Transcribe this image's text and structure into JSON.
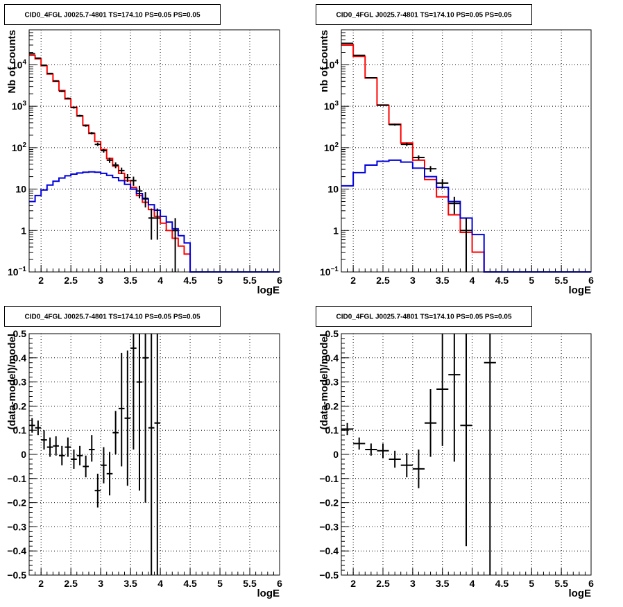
{
  "chart_data": [
    {
      "type": "line",
      "title": "CID0_4FGL J0025.7-4801 TS=174.10 PS=0.05 PS=0.05",
      "xlabel": "logE",
      "ylabel": "Nb of counts",
      "log_y": true,
      "xlim": [
        1.8,
        6.0
      ],
      "ylim": [
        0.1,
        70000
      ],
      "grid": true,
      "x_ticks": [
        "2",
        "2.5",
        "3",
        "3.5",
        "4",
        "4.5",
        "5",
        "5.5",
        "6"
      ],
      "y_ticks": [
        {
          "value": 0.1,
          "label": "10",
          "exp": "−1"
        },
        {
          "value": 1,
          "label": "1",
          "exp": ""
        },
        {
          "value": 10,
          "label": "10",
          "exp": ""
        },
        {
          "value": 100,
          "label": "10",
          "exp": "2"
        },
        {
          "value": 1000,
          "label": "10",
          "exp": "3"
        },
        {
          "value": 10000,
          "label": "10",
          "exp": "4"
        }
      ],
      "bin_edges": [
        1.8,
        1.9,
        2.0,
        2.1,
        2.2,
        2.3,
        2.4,
        2.5,
        2.6,
        2.7,
        2.8,
        2.9,
        3.0,
        3.1,
        3.2,
        3.3,
        3.4,
        3.5,
        3.6,
        3.7,
        3.8,
        3.9,
        4.0,
        4.1,
        4.2,
        4.3,
        4.4,
        4.5,
        4.6,
        4.7,
        4.8,
        4.9,
        5.0,
        5.1,
        5.2,
        5.3,
        5.4,
        5.5,
        5.6,
        5.7,
        5.8,
        5.9,
        6.0
      ],
      "series": [
        {
          "color": "#ff0000",
          "values": [
            17000,
            14000,
            9500,
            6000,
            4000,
            2400,
            1500,
            950,
            580,
            350,
            220,
            140,
            90,
            55,
            36,
            24,
            16,
            11,
            7,
            4.8,
            3.2,
            2.2,
            1.5,
            1.0,
            0.65,
            0.42,
            0.27,
            0.1,
            0.1,
            0.1,
            0.1,
            0.1,
            0.1,
            0.1,
            0.1,
            0.1,
            0.1,
            0.1,
            0.1,
            0.1,
            0.1,
            0.1
          ]
        },
        {
          "color": "#0000dd",
          "values": [
            5,
            7,
            9.5,
            12.5,
            15.5,
            18.5,
            21,
            23,
            24.5,
            25.5,
            26,
            25.5,
            24,
            21.5,
            19,
            16,
            13,
            10,
            7.8,
            5.8,
            4.2,
            3.1,
            2.2,
            1.6,
            1.1,
            0.75,
            0.5,
            0.1,
            0.1,
            0.1,
            0.1,
            0.1,
            0.1,
            0.1,
            0.1,
            0.1,
            0.1,
            0.1,
            0.1,
            0.1,
            0.1,
            0.1
          ]
        }
      ],
      "points": [
        {
          "x": 1.85,
          "y": 18500,
          "ylo": 18000,
          "yhi": 19000
        },
        {
          "x": 1.95,
          "y": 14500,
          "ylo": 14000,
          "yhi": 15000
        },
        {
          "x": 2.05,
          "y": 9800,
          "ylo": 9500,
          "yhi": 10100
        },
        {
          "x": 2.15,
          "y": 6200,
          "ylo": 6000,
          "yhi": 6400
        },
        {
          "x": 2.25,
          "y": 4100,
          "ylo": 3950,
          "yhi": 4250
        },
        {
          "x": 2.35,
          "y": 2300,
          "ylo": 2200,
          "yhi": 2400
        },
        {
          "x": 2.45,
          "y": 1550,
          "ylo": 1480,
          "yhi": 1620
        },
        {
          "x": 2.55,
          "y": 930,
          "ylo": 880,
          "yhi": 980
        },
        {
          "x": 2.65,
          "y": 590,
          "ylo": 560,
          "yhi": 620
        },
        {
          "x": 2.75,
          "y": 340,
          "ylo": 320,
          "yhi": 360
        },
        {
          "x": 2.85,
          "y": 225,
          "ylo": 210,
          "yhi": 240
        },
        {
          "x": 2.95,
          "y": 120,
          "ylo": 110,
          "yhi": 132
        },
        {
          "x": 3.05,
          "y": 85,
          "ylo": 76,
          "yhi": 94
        },
        {
          "x": 3.15,
          "y": 50,
          "ylo": 43,
          "yhi": 57
        },
        {
          "x": 3.25,
          "y": 38,
          "ylo": 32,
          "yhi": 44
        },
        {
          "x": 3.35,
          "y": 28,
          "ylo": 23,
          "yhi": 33
        },
        {
          "x": 3.45,
          "y": 19,
          "ylo": 15,
          "yhi": 23
        },
        {
          "x": 3.55,
          "y": 16,
          "ylo": 12,
          "yhi": 20
        },
        {
          "x": 3.65,
          "y": 9,
          "ylo": 6,
          "yhi": 12
        },
        {
          "x": 3.75,
          "y": 6,
          "ylo": 3.6,
          "yhi": 8.4
        },
        {
          "x": 3.85,
          "y": 2,
          "ylo": 0.6,
          "yhi": 3.4
        },
        {
          "x": 3.95,
          "y": 2,
          "ylo": 0.6,
          "yhi": 3.4
        },
        {
          "x": 4.25,
          "y": 1,
          "ylo": 0.1,
          "yhi": 2
        }
      ]
    },
    {
      "type": "line",
      "title": "CID0_4FGL J0025.7-4801 TS=174.10 PS=0.05 PS=0.05",
      "xlabel": "logE",
      "ylabel": "nb of counts",
      "log_y": true,
      "xlim": [
        1.8,
        6.0
      ],
      "ylim": [
        0.1,
        70000
      ],
      "grid": true,
      "x_ticks": [
        "2",
        "2.5",
        "3",
        "3.5",
        "4",
        "4.5",
        "5",
        "5.5",
        "6"
      ],
      "y_ticks": [
        {
          "value": 0.1,
          "label": "10",
          "exp": "−1"
        },
        {
          "value": 1,
          "label": "1",
          "exp": ""
        },
        {
          "value": 10,
          "label": "10",
          "exp": ""
        },
        {
          "value": 100,
          "label": "10",
          "exp": "2"
        },
        {
          "value": 1000,
          "label": "10",
          "exp": "3"
        },
        {
          "value": 10000,
          "label": "10",
          "exp": "4"
        }
      ],
      "bin_edges": [
        1.8,
        2.0,
        2.2,
        2.4,
        2.6,
        2.8,
        3.0,
        3.2,
        3.4,
        3.6,
        3.8,
        4.0,
        4.2,
        4.4,
        4.6,
        4.8,
        5.0,
        5.2,
        5.4,
        5.6,
        5.8,
        6.0
      ],
      "series": [
        {
          "color": "#ff0000",
          "values": [
            30000,
            16000,
            4800,
            1050,
            370,
            130,
            50,
            17,
            6.5,
            2.4,
            0.9,
            0.3,
            0.1,
            0.1,
            0.1,
            0.1,
            0.1,
            0.1,
            0.1,
            0.1,
            0.1
          ]
        },
        {
          "color": "#0000dd",
          "values": [
            12,
            25,
            38,
            47,
            50,
            45,
            32,
            20,
            11,
            5,
            2,
            0.8,
            0.1,
            0.1,
            0.1,
            0.1,
            0.1,
            0.1,
            0.1,
            0.1,
            0.1
          ]
        }
      ],
      "points": [
        {
          "x": 1.9,
          "y": 33000,
          "ylo": 32000,
          "yhi": 34000
        },
        {
          "x": 2.1,
          "y": 17000,
          "ylo": 16500,
          "yhi": 17500
        },
        {
          "x": 2.3,
          "y": 4900,
          "ylo": 4800,
          "yhi": 5000
        },
        {
          "x": 2.5,
          "y": 1070,
          "ylo": 1040,
          "yhi": 1100
        },
        {
          "x": 2.7,
          "y": 360,
          "ylo": 340,
          "yhi": 380
        },
        {
          "x": 2.9,
          "y": 120,
          "ylo": 110,
          "yhi": 132
        },
        {
          "x": 3.1,
          "y": 58,
          "ylo": 51,
          "yhi": 65
        },
        {
          "x": 3.3,
          "y": 31,
          "ylo": 26,
          "yhi": 36
        },
        {
          "x": 3.5,
          "y": 14,
          "ylo": 10.5,
          "yhi": 17.5
        },
        {
          "x": 3.7,
          "y": 4.5,
          "ylo": 2.5,
          "yhi": 6.5
        },
        {
          "x": 3.9,
          "y": 1,
          "ylo": 0.1,
          "yhi": 2
        }
      ]
    },
    {
      "type": "scatter",
      "title": "CID0_4FGL J0025.7-4801 TS=174.10 PS=0.05 PS=0.05",
      "xlabel": "logE",
      "ylabel": "(data-model)/model",
      "log_y": false,
      "xlim": [
        1.8,
        6.0
      ],
      "ylim": [
        -0.5,
        0.5
      ],
      "grid": true,
      "x_ticks": [
        "2",
        "2.5",
        "3",
        "3.5",
        "4",
        "4.5",
        "5",
        "5.5",
        "6"
      ],
      "y_ticks": [
        {
          "value": -0.5,
          "label": "−0.5"
        },
        {
          "value": -0.4,
          "label": "−0.4"
        },
        {
          "value": -0.3,
          "label": "−0.3"
        },
        {
          "value": -0.2,
          "label": "−0.2"
        },
        {
          "value": -0.1,
          "label": "−0.1"
        },
        {
          "value": 0,
          "label": "0"
        },
        {
          "value": 0.1,
          "label": "0.1"
        },
        {
          "value": 0.2,
          "label": "0.2"
        },
        {
          "value": 0.3,
          "label": "0.3"
        },
        {
          "value": 0.4,
          "label": "0.4"
        },
        {
          "value": 0.5,
          "label": "0.5"
        }
      ],
      "bin_half_width": 0.05,
      "points": [
        {
          "x": 1.85,
          "y": 0.12,
          "ylo": 0.09,
          "yhi": 0.15
        },
        {
          "x": 1.95,
          "y": 0.11,
          "ylo": 0.08,
          "yhi": 0.14
        },
        {
          "x": 2.05,
          "y": 0.06,
          "ylo": 0.02,
          "yhi": 0.1
        },
        {
          "x": 2.15,
          "y": 0.03,
          "ylo": -0.01,
          "yhi": 0.07
        },
        {
          "x": 2.25,
          "y": 0.035,
          "ylo": -0.005,
          "yhi": 0.075
        },
        {
          "x": 2.35,
          "y": -0.005,
          "ylo": -0.045,
          "yhi": 0.035
        },
        {
          "x": 2.45,
          "y": 0.03,
          "ylo": -0.01,
          "yhi": 0.07
        },
        {
          "x": 2.55,
          "y": -0.02,
          "ylo": -0.06,
          "yhi": 0.02
        },
        {
          "x": 2.65,
          "y": -0.005,
          "ylo": -0.045,
          "yhi": 0.035
        },
        {
          "x": 2.75,
          "y": -0.05,
          "ylo": -0.095,
          "yhi": -0.005
        },
        {
          "x": 2.85,
          "y": 0.02,
          "ylo": -0.03,
          "yhi": 0.08
        },
        {
          "x": 2.95,
          "y": -0.15,
          "ylo": -0.22,
          "yhi": -0.08
        },
        {
          "x": 3.05,
          "y": -0.045,
          "ylo": -0.12,
          "yhi": 0.03
        },
        {
          "x": 3.15,
          "y": -0.08,
          "ylo": -0.17,
          "yhi": 0.01
        },
        {
          "x": 3.25,
          "y": 0.09,
          "ylo": 0.0,
          "yhi": 0.18
        },
        {
          "x": 3.35,
          "y": 0.19,
          "ylo": -0.05,
          "yhi": 0.42
        },
        {
          "x": 3.45,
          "y": 0.15,
          "ylo": -0.13,
          "yhi": 0.43
        },
        {
          "x": 3.55,
          "y": 0.44,
          "ylo": 0.02,
          "yhi": 0.55
        },
        {
          "x": 3.65,
          "y": 0.3,
          "ylo": -0.15,
          "yhi": 0.55
        },
        {
          "x": 3.75,
          "y": 0.4,
          "ylo": -0.2,
          "yhi": 0.55
        },
        {
          "x": 3.85,
          "y": 0.11,
          "ylo": -0.55,
          "yhi": 0.55
        },
        {
          "x": 3.95,
          "y": 0.13,
          "ylo": -0.55,
          "yhi": 0.55
        }
      ]
    },
    {
      "type": "scatter",
      "title": "CID0_4FGL J0025.7-4801 TS=174.10 PS=0.05 PS=0.05",
      "xlabel": "logE",
      "ylabel": "(data-model)/model",
      "log_y": false,
      "xlim": [
        1.8,
        6.0
      ],
      "ylim": [
        -0.5,
        0.5
      ],
      "grid": true,
      "x_ticks": [
        "2",
        "2.5",
        "3",
        "3.5",
        "4",
        "4.5",
        "5",
        "5.5",
        "6"
      ],
      "y_ticks": [
        {
          "value": -0.5,
          "label": "−0.5"
        },
        {
          "value": -0.4,
          "label": "−0.4"
        },
        {
          "value": -0.3,
          "label": "−0.3"
        },
        {
          "value": -0.2,
          "label": "−0.2"
        },
        {
          "value": -0.1,
          "label": "−0.1"
        },
        {
          "value": 0,
          "label": "0"
        },
        {
          "value": 0.1,
          "label": "0.1"
        },
        {
          "value": 0.2,
          "label": "0.2"
        },
        {
          "value": 0.3,
          "label": "0.3"
        },
        {
          "value": 0.4,
          "label": "0.4"
        },
        {
          "value": 0.5,
          "label": "0.5"
        }
      ],
      "bin_half_width": 0.1,
      "points": [
        {
          "x": 1.9,
          "y": 0.105,
          "ylo": 0.08,
          "yhi": 0.13
        },
        {
          "x": 2.1,
          "y": 0.045,
          "ylo": 0.02,
          "yhi": 0.07
        },
        {
          "x": 2.3,
          "y": 0.02,
          "ylo": -0.005,
          "yhi": 0.045
        },
        {
          "x": 2.5,
          "y": 0.015,
          "ylo": -0.015,
          "yhi": 0.045
        },
        {
          "x": 2.7,
          "y": -0.02,
          "ylo": -0.055,
          "yhi": 0.015
        },
        {
          "x": 2.9,
          "y": -0.045,
          "ylo": -0.095,
          "yhi": 0.005
        },
        {
          "x": 3.1,
          "y": -0.06,
          "ylo": -0.14,
          "yhi": 0.02
        },
        {
          "x": 3.3,
          "y": 0.13,
          "ylo": -0.01,
          "yhi": 0.27
        },
        {
          "x": 3.5,
          "y": 0.27,
          "ylo": 0.035,
          "yhi": 0.5
        },
        {
          "x": 3.7,
          "y": 0.33,
          "ylo": -0.03,
          "yhi": 0.55
        },
        {
          "x": 3.9,
          "y": 0.12,
          "ylo": -0.38,
          "yhi": 0.55
        },
        {
          "x": 4.3,
          "y": 0.38,
          "ylo": -0.55,
          "yhi": 0.55
        }
      ]
    }
  ]
}
